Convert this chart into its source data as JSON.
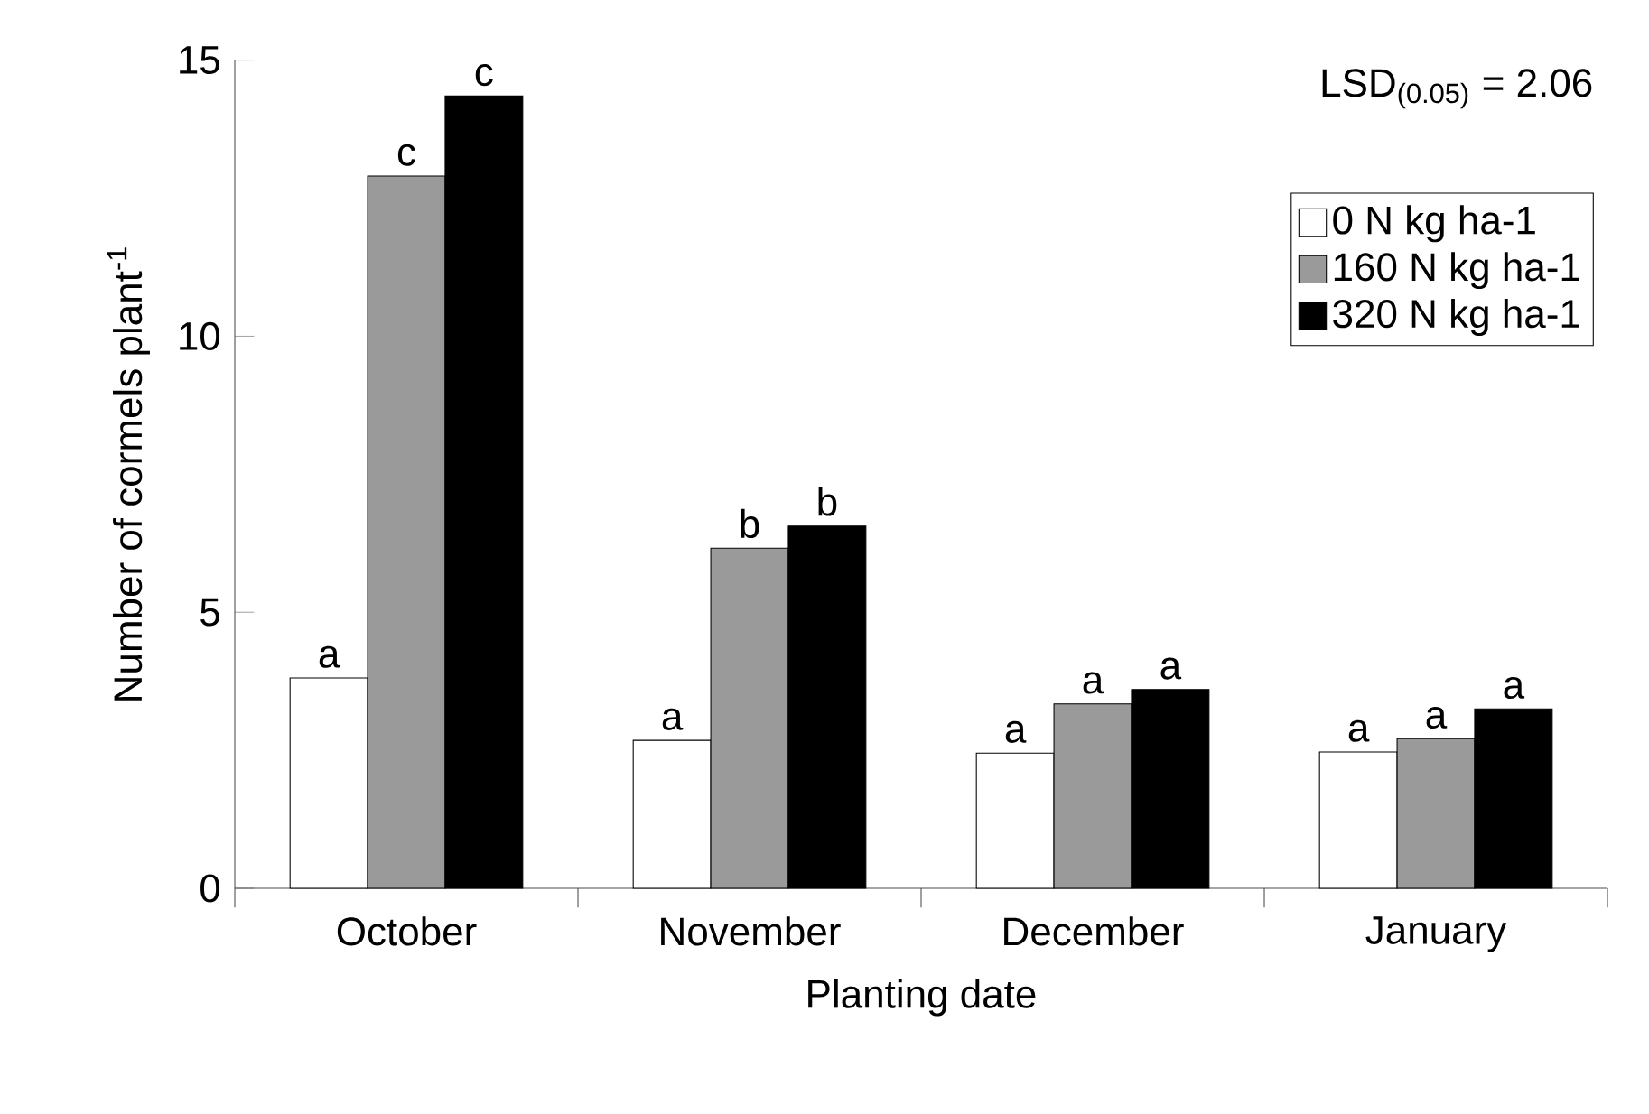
{
  "chart_data": {
    "type": "bar",
    "xlabel": "Planting date",
    "ylabel": "Number of cormels plant$^{-1}$",
    "categories": [
      "October",
      "November",
      "December",
      "January"
    ],
    "series": [
      {
        "name": "0 N kg ha-1",
        "color": "#ffffff",
        "values": [
          3.81,
          2.68,
          2.45,
          2.47
        ],
        "value_labels": [
          "a",
          "a",
          "a",
          "a"
        ]
      },
      {
        "name": "160 N kg ha-1",
        "color": "#9a9a9a",
        "values": [
          12.9,
          6.16,
          3.34,
          2.71
        ],
        "value_labels": [
          "c",
          "b",
          "a",
          "a"
        ]
      },
      {
        "name": "320 N kg ha-1",
        "color": "#000000",
        "values": [
          14.35,
          6.56,
          3.6,
          3.25
        ],
        "value_labels": [
          "c",
          "b",
          "a",
          "a"
        ]
      }
    ],
    "ylim": [
      0,
      15
    ],
    "yticks": [
      0,
      5,
      10,
      15
    ],
    "legend": "top right",
    "grid": false,
    "annotations": [
      "LSD$_{(0.05)}$ = 2.06"
    ]
  }
}
